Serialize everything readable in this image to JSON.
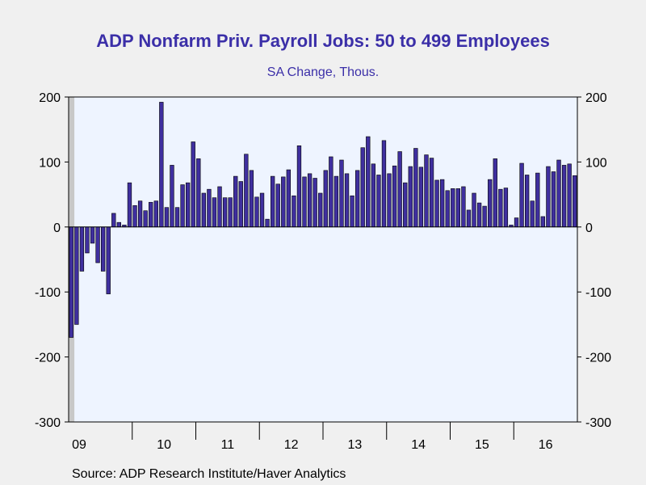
{
  "chart_data": {
    "type": "bar",
    "title": "ADP Nonfarm Priv. Payroll Jobs: 50 to 499 Employees",
    "subtitle": "SA Change, Thous.",
    "source": "Source:  ADP Research Institute/Haver Analytics",
    "ylim": [
      -300,
      200
    ],
    "yticks": [
      {
        "value": 200,
        "label": "200"
      },
      {
        "value": 100,
        "label": "100"
      },
      {
        "value": 0,
        "label": "0"
      },
      {
        "value": -100,
        "label": "-100"
      },
      {
        "value": -200,
        "label": "-200"
      },
      {
        "value": -300,
        "label": "-300"
      }
    ],
    "xtick_labels": [
      "09",
      "10",
      "11",
      "12",
      "13",
      "14",
      "15",
      "16"
    ],
    "start": "2009-01",
    "recession_shading": {
      "start": "2009-01",
      "end": "2009-06"
    },
    "bar_color": "#3f2f9f",
    "plot_background": "#eef4ff",
    "title_color": "#3b2fa8",
    "values": [
      -170,
      -150,
      -68,
      -40,
      -25,
      -55,
      -68,
      -103,
      21,
      7,
      3,
      68,
      33,
      40,
      25,
      38,
      40,
      192,
      30,
      95,
      30,
      65,
      68,
      131,
      105,
      52,
      58,
      45,
      62,
      45,
      45,
      78,
      70,
      112,
      87,
      46,
      52,
      12,
      78,
      66,
      77,
      88,
      48,
      125,
      77,
      82,
      75,
      52,
      87,
      108,
      78,
      103,
      82,
      48,
      87,
      122,
      139,
      97,
      80,
      133,
      82,
      94,
      116,
      68,
      93,
      121,
      92,
      111,
      106,
      72,
      73,
      56,
      59,
      59,
      62,
      26,
      52,
      37,
      32,
      73,
      105,
      58,
      60,
      3,
      14,
      98,
      80,
      40,
      83,
      16,
      93,
      85,
      103,
      95,
      97,
      79
    ]
  }
}
